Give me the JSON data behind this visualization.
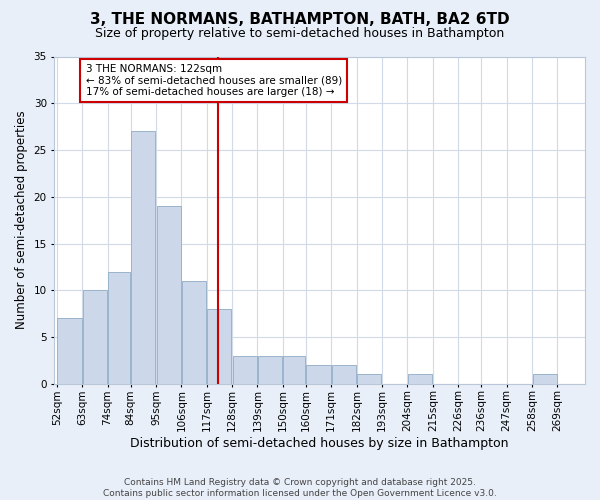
{
  "title": "3, THE NORMANS, BATHAMPTON, BATH, BA2 6TD",
  "subtitle": "Size of property relative to semi-detached houses in Bathampton",
  "xlabel": "Distribution of semi-detached houses by size in Bathampton",
  "ylabel": "Number of semi-detached properties",
  "bin_edges": [
    52,
    63,
    74,
    84,
    95,
    106,
    117,
    128,
    139,
    150,
    160,
    171,
    182,
    193,
    204,
    215,
    226,
    236,
    247,
    258,
    269,
    280
  ],
  "bin_labels": [
    "52sqm",
    "63sqm",
    "74sqm",
    "84sqm",
    "95sqm",
    "106sqm",
    "117sqm",
    "128sqm",
    "139sqm",
    "150sqm",
    "160sqm",
    "171sqm",
    "182sqm",
    "193sqm",
    "204sqm",
    "215sqm",
    "226sqm",
    "236sqm",
    "247sqm",
    "258sqm",
    "269sqm"
  ],
  "values": [
    7,
    10,
    12,
    27,
    19,
    11,
    8,
    3,
    3,
    3,
    2,
    2,
    1,
    0,
    1,
    0,
    0,
    0,
    0,
    1,
    0
  ],
  "bar_color": "#ccd8ea",
  "bar_edge_color": "#9ab4cc",
  "property_value": 122,
  "vline_color": "#cc0000",
  "annotation_line1": "3 THE NORMANS: 122sqm",
  "annotation_line2": "← 83% of semi-detached houses are smaller (89)",
  "annotation_line3": "17% of semi-detached houses are larger (18) →",
  "annotation_box_color": "#ffffff",
  "annotation_box_edge_color": "#cc0000",
  "plot_bg_color": "#ffffff",
  "fig_bg_color": "#e8eff8",
  "grid_color": "#d0dae8",
  "ylim": [
    0,
    35
  ],
  "yticks": [
    0,
    5,
    10,
    15,
    20,
    25,
    30,
    35
  ],
  "title_fontsize": 11,
  "subtitle_fontsize": 9,
  "xlabel_fontsize": 9,
  "ylabel_fontsize": 8.5,
  "tick_fontsize": 7.5,
  "annot_fontsize": 7.5,
  "footer_text": "Contains HM Land Registry data © Crown copyright and database right 2025.\nContains public sector information licensed under the Open Government Licence v3.0.",
  "footer_fontsize": 6.5
}
